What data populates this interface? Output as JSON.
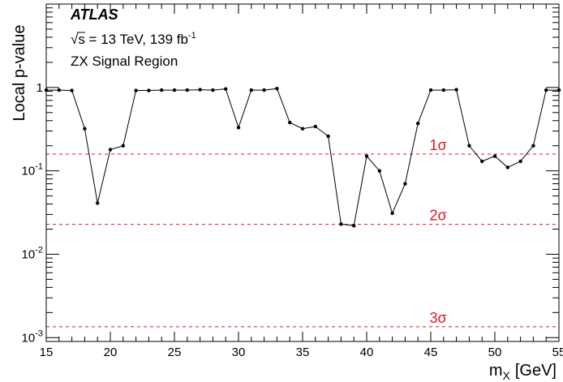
{
  "chart_data": {
    "type": "line",
    "experiment": "ATLAS",
    "energy_label": "√s = 13 TeV, 139 fb",
    "lumi_exponent": "-1",
    "region_label": "ZX Signal Region",
    "xlabel": "m",
    "xlabel_sub": "X",
    "xlabel_unit": "[GeV]",
    "ylabel": "Local p-value",
    "xlim": [
      15,
      55
    ],
    "ylim": [
      0.0009,
      10
    ],
    "yscale": "log",
    "x_ticks": [
      "15",
      "20",
      "25",
      "30",
      "35",
      "40",
      "45",
      "50",
      "55"
    ],
    "y_ticks": [
      {
        "base": "10",
        "exp": "-3",
        "value": 0.001
      },
      {
        "base": "10",
        "exp": "-2",
        "value": 0.01
      },
      {
        "base": "10",
        "exp": "-1",
        "value": 0.1
      },
      {
        "base": "1",
        "exp": "",
        "value": 1
      }
    ],
    "series": [
      {
        "x": [
          15,
          16,
          17,
          18,
          19,
          20,
          21,
          22,
          23,
          24,
          25,
          26,
          27,
          28,
          29,
          30,
          31,
          32,
          33,
          34,
          35,
          36,
          37,
          38,
          39,
          40,
          41,
          42,
          43,
          44,
          45,
          46,
          47,
          48,
          49,
          50,
          51,
          52,
          53,
          54,
          55
        ],
        "y": [
          0.93,
          0.93,
          0.92,
          0.32,
          0.041,
          0.18,
          0.2,
          0.92,
          0.92,
          0.93,
          0.93,
          0.93,
          0.94,
          0.93,
          0.96,
          0.33,
          0.93,
          0.93,
          0.97,
          0.38,
          0.32,
          0.34,
          0.26,
          0.023,
          0.022,
          0.15,
          0.1,
          0.031,
          0.07,
          0.37,
          0.93,
          0.93,
          0.94,
          0.2,
          0.13,
          0.15,
          0.11,
          0.13,
          0.2,
          0.93,
          0.93
        ]
      }
    ],
    "significance_lines": [
      {
        "label": "1σ",
        "value": 0.159
      },
      {
        "label": "2σ",
        "value": 0.0228
      },
      {
        "label": "3σ",
        "value": 0.00135
      }
    ],
    "colors": {
      "series": "#000000",
      "significance": "#e8131c"
    }
  }
}
